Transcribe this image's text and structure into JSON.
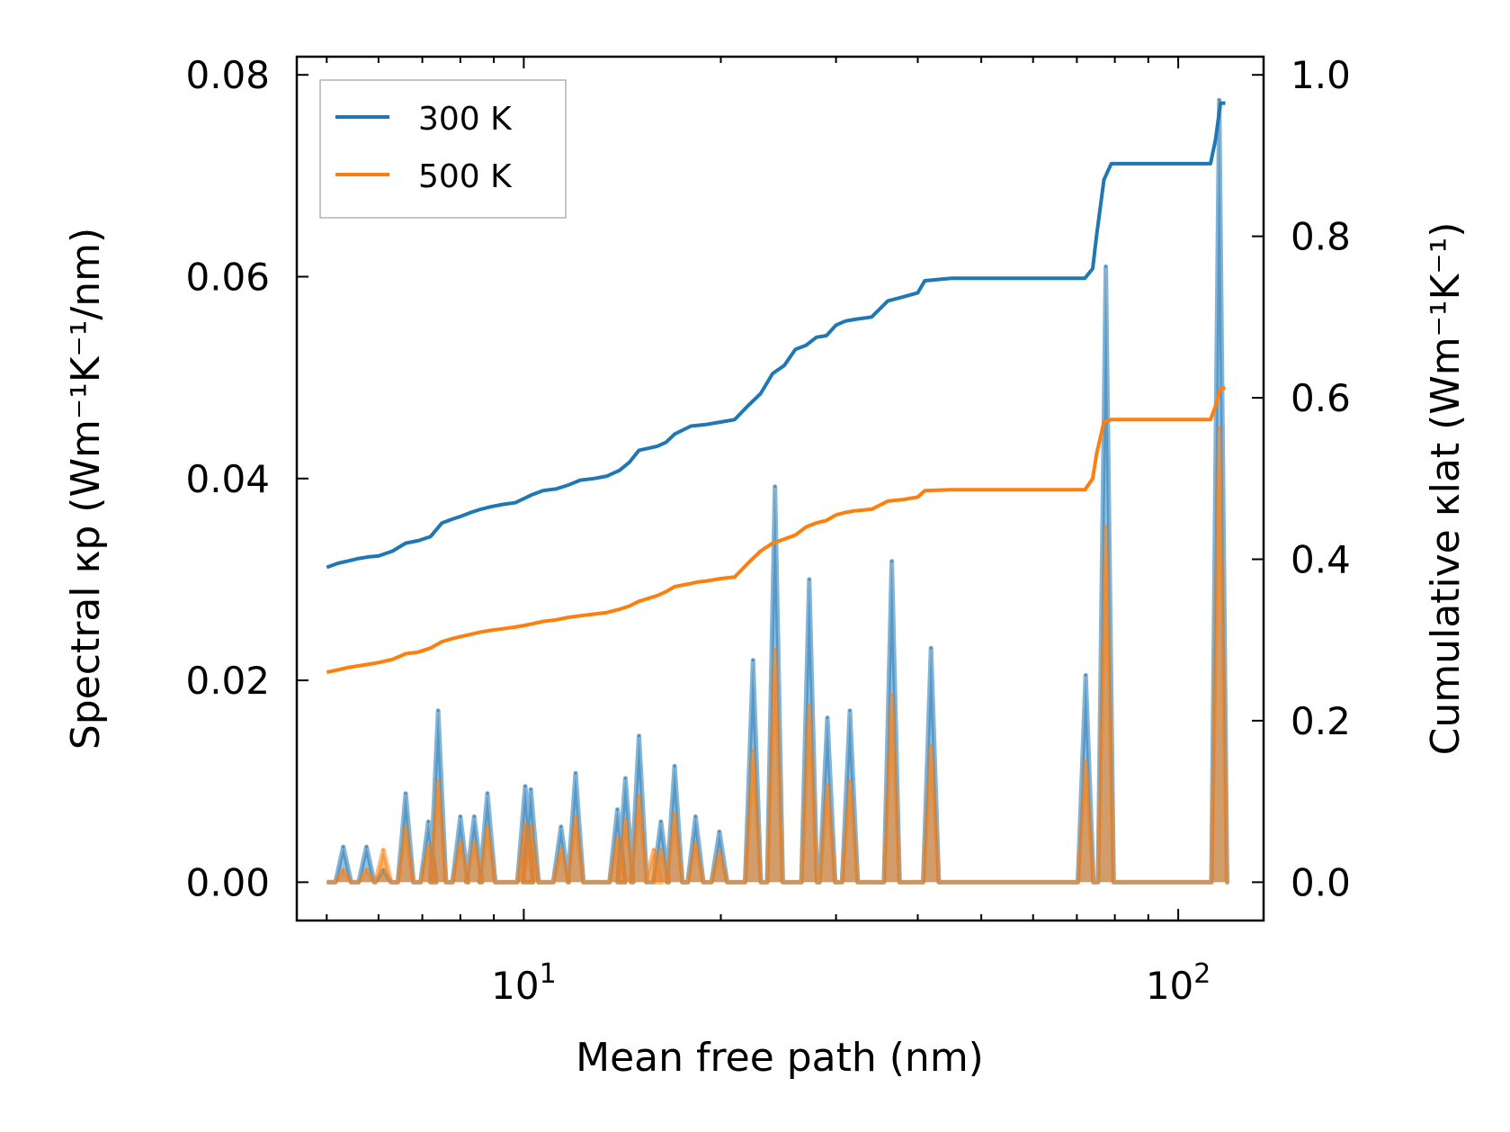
{
  "chart_data": {
    "type": "line",
    "xscale": "log",
    "xlabel": "Mean free path (nm)",
    "ylabel_left": "Spectral κp (Wm⁻¹K⁻¹/nm)",
    "ylabel_right": "Cumulative κlat (Wm⁻¹K⁻¹)",
    "xlim": [
      4.5,
      135
    ],
    "ylim_left": [
      -0.0038,
      0.0818
    ],
    "ylim_right": [
      -0.0475,
      1.0225
    ],
    "x_ticks": [
      {
        "value": 10,
        "base": "10",
        "exp": "1"
      },
      {
        "value": 100,
        "base": "10",
        "exp": "2"
      }
    ],
    "y_ticks_left": [
      "0.00",
      "0.02",
      "0.04",
      "0.06",
      "0.08"
    ],
    "y_ticks_left_values": [
      0,
      0.02,
      0.04,
      0.06,
      0.08
    ],
    "y_ticks_right": [
      "0.0",
      "0.2",
      "0.4",
      "0.6",
      "0.8",
      "1.0"
    ],
    "y_ticks_right_values": [
      0,
      0.2,
      0.4,
      0.6,
      0.8,
      1.0
    ],
    "legend": {
      "position": "top-left",
      "entries": [
        {
          "label": "300 K",
          "color": "#1f77b4"
        },
        {
          "label": "500 K",
          "color": "#ff7f0e"
        }
      ]
    },
    "series": [
      {
        "name": "300 K",
        "kind": "cumulative",
        "axis": "right",
        "color": "#1f77b4",
        "x": [
          5.0,
          5.2,
          5.4,
          5.6,
          5.8,
          6.0,
          6.3,
          6.6,
          6.9,
          7.2,
          7.5,
          7.8,
          8.0,
          8.3,
          8.6,
          8.9,
          9.3,
          9.7,
          10.0,
          10.3,
          10.7,
          11.2,
          11.7,
          12.2,
          12.8,
          13.4,
          14.0,
          14.5,
          15.0,
          16.0,
          16.5,
          17.0,
          18.0,
          18.5,
          19.0,
          20.0,
          21.0,
          22.0,
          23.0,
          24.0,
          25.0,
          26.0,
          27.0,
          28.0,
          29.0,
          30.0,
          31.0,
          32.0,
          34.0,
          36.0,
          38.0,
          40.0,
          41.0,
          45.0,
          55.0,
          65.0,
          72.0,
          74.0,
          75.0,
          77.0,
          79.0,
          85.0,
          100.0,
          112.0,
          114.0,
          116.0,
          118.0
        ],
        "values": [
          0.39,
          0.395,
          0.398,
          0.401,
          0.403,
          0.404,
          0.41,
          0.42,
          0.423,
          0.428,
          0.445,
          0.45,
          0.453,
          0.458,
          0.462,
          0.465,
          0.468,
          0.47,
          0.475,
          0.48,
          0.485,
          0.487,
          0.492,
          0.498,
          0.5,
          0.503,
          0.51,
          0.52,
          0.535,
          0.54,
          0.545,
          0.555,
          0.565,
          0.566,
          0.567,
          0.57,
          0.573,
          0.59,
          0.605,
          0.63,
          0.64,
          0.66,
          0.665,
          0.675,
          0.677,
          0.69,
          0.695,
          0.697,
          0.7,
          0.72,
          0.725,
          0.73,
          0.745,
          0.748,
          0.748,
          0.748,
          0.748,
          0.76,
          0.8,
          0.87,
          0.89,
          0.89,
          0.89,
          0.89,
          0.92,
          0.965,
          0.965
        ]
      },
      {
        "name": "500 K",
        "kind": "cumulative",
        "axis": "right",
        "color": "#ff7f0e",
        "x": [
          5.0,
          5.2,
          5.4,
          5.6,
          5.8,
          6.0,
          6.3,
          6.6,
          6.9,
          7.2,
          7.5,
          7.8,
          8.0,
          8.3,
          8.6,
          8.9,
          9.3,
          9.7,
          10.0,
          10.3,
          10.7,
          11.2,
          11.7,
          12.2,
          12.8,
          13.4,
          14.0,
          14.5,
          15.0,
          16.0,
          16.5,
          17.0,
          18.0,
          18.5,
          19.0,
          20.0,
          21.0,
          22.0,
          23.0,
          24.0,
          25.0,
          26.0,
          27.0,
          28.0,
          29.0,
          30.0,
          31.0,
          32.0,
          34.0,
          36.0,
          38.0,
          40.0,
          41.0,
          45.0,
          55.0,
          65.0,
          72.0,
          74.0,
          75.0,
          77.0,
          79.0,
          85.0,
          100.0,
          112.0,
          114.0,
          116.0,
          118.0
        ],
        "values": [
          0.26,
          0.263,
          0.266,
          0.268,
          0.27,
          0.272,
          0.276,
          0.283,
          0.285,
          0.29,
          0.298,
          0.302,
          0.304,
          0.307,
          0.31,
          0.312,
          0.314,
          0.316,
          0.318,
          0.32,
          0.323,
          0.325,
          0.328,
          0.33,
          0.332,
          0.334,
          0.338,
          0.342,
          0.348,
          0.355,
          0.36,
          0.366,
          0.37,
          0.372,
          0.373,
          0.376,
          0.378,
          0.395,
          0.41,
          0.42,
          0.425,
          0.43,
          0.44,
          0.445,
          0.448,
          0.455,
          0.458,
          0.46,
          0.462,
          0.472,
          0.474,
          0.477,
          0.485,
          0.486,
          0.486,
          0.486,
          0.486,
          0.5,
          0.53,
          0.57,
          0.573,
          0.573,
          0.573,
          0.573,
          0.59,
          0.612,
          0.612
        ]
      }
    ],
    "spectral_series": [
      {
        "name": "300 K spectral",
        "axis": "left",
        "color": "#1f77b4",
        "peaks": [
          {
            "x": 5.3,
            "y": 0.0035
          },
          {
            "x": 5.75,
            "y": 0.0035
          },
          {
            "x": 6.1,
            "y": 0.0012
          },
          {
            "x": 6.6,
            "y": 0.0088
          },
          {
            "x": 7.15,
            "y": 0.006
          },
          {
            "x": 7.4,
            "y": 0.017
          },
          {
            "x": 8.0,
            "y": 0.0065
          },
          {
            "x": 8.4,
            "y": 0.0065
          },
          {
            "x": 8.8,
            "y": 0.0088
          },
          {
            "x": 10.05,
            "y": 0.0095
          },
          {
            "x": 10.25,
            "y": 0.0092
          },
          {
            "x": 11.4,
            "y": 0.0055
          },
          {
            "x": 12.0,
            "y": 0.0108
          },
          {
            "x": 13.9,
            "y": 0.0072
          },
          {
            "x": 14.3,
            "y": 0.0103
          },
          {
            "x": 15.0,
            "y": 0.0145
          },
          {
            "x": 16.2,
            "y": 0.006
          },
          {
            "x": 17.0,
            "y": 0.0115
          },
          {
            "x": 18.3,
            "y": 0.0065
          },
          {
            "x": 19.9,
            "y": 0.005
          },
          {
            "x": 22.4,
            "y": 0.022
          },
          {
            "x": 24.2,
            "y": 0.0392
          },
          {
            "x": 27.3,
            "y": 0.03
          },
          {
            "x": 29.1,
            "y": 0.0163
          },
          {
            "x": 31.5,
            "y": 0.017
          },
          {
            "x": 36.5,
            "y": 0.0318
          },
          {
            "x": 41.9,
            "y": 0.0232
          },
          {
            "x": 72.2,
            "y": 0.0205
          },
          {
            "x": 77.5,
            "y": 0.061
          },
          {
            "x": 115.5,
            "y": 0.0775
          }
        ]
      },
      {
        "name": "500 K spectral",
        "axis": "left",
        "color": "#ff7f0e",
        "peaks": [
          {
            "x": 5.3,
            "y": 0.0012
          },
          {
            "x": 5.75,
            "y": 0.0012
          },
          {
            "x": 6.1,
            "y": 0.0032
          },
          {
            "x": 6.6,
            "y": 0.0055
          },
          {
            "x": 7.15,
            "y": 0.0036
          },
          {
            "x": 7.4,
            "y": 0.01
          },
          {
            "x": 8.0,
            "y": 0.004
          },
          {
            "x": 8.4,
            "y": 0.004
          },
          {
            "x": 8.8,
            "y": 0.0055
          },
          {
            "x": 10.05,
            "y": 0.0058
          },
          {
            "x": 10.25,
            "y": 0.0056
          },
          {
            "x": 11.4,
            "y": 0.0033
          },
          {
            "x": 12.0,
            "y": 0.0065
          },
          {
            "x": 13.9,
            "y": 0.0044
          },
          {
            "x": 14.3,
            "y": 0.0062
          },
          {
            "x": 15.0,
            "y": 0.0085
          },
          {
            "x": 15.8,
            "y": 0.0032
          },
          {
            "x": 16.2,
            "y": 0.0032
          },
          {
            "x": 17.0,
            "y": 0.0068
          },
          {
            "x": 18.3,
            "y": 0.0039
          },
          {
            "x": 19.9,
            "y": 0.003
          },
          {
            "x": 22.4,
            "y": 0.013
          },
          {
            "x": 24.2,
            "y": 0.023
          },
          {
            "x": 27.3,
            "y": 0.0175
          },
          {
            "x": 29.1,
            "y": 0.0096
          },
          {
            "x": 31.5,
            "y": 0.01
          },
          {
            "x": 36.5,
            "y": 0.0185
          },
          {
            "x": 41.9,
            "y": 0.0135
          },
          {
            "x": 72.2,
            "y": 0.012
          },
          {
            "x": 77.5,
            "y": 0.0352
          },
          {
            "x": 115.5,
            "y": 0.045
          }
        ]
      }
    ]
  }
}
